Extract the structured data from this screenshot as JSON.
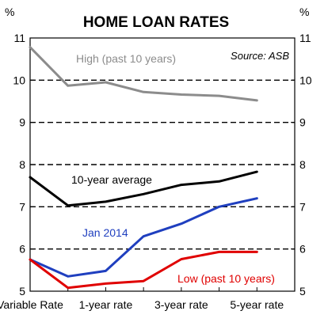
{
  "chart_data": {
    "type": "line",
    "title": "HOME LOAN RATES",
    "y_unit_left": "%",
    "y_unit_right": "%",
    "source": "Source: ASB",
    "ylim": [
      5,
      11
    ],
    "yticks": [
      "5",
      "6",
      "7",
      "8",
      "9",
      "10",
      "11"
    ],
    "grid": "dashed horizontal",
    "x": [
      0,
      1,
      2,
      3,
      4,
      5,
      6,
      7
    ],
    "xtick_labels": [
      "Variable Rate",
      "1-year rate",
      "3-year rate",
      "5-year rate"
    ],
    "xtick_positions": [
      0,
      2,
      4,
      6
    ],
    "series": [
      {
        "name": "High (past 10 years)",
        "color": "#8c8c8c",
        "values": [
          10.78,
          9.87,
          9.95,
          9.72,
          9.66,
          9.63,
          9.52,
          null
        ]
      },
      {
        "name": "10-year average",
        "color": "#000000",
        "values": [
          7.7,
          7.03,
          7.12,
          7.3,
          7.52,
          7.6,
          7.83,
          null
        ]
      },
      {
        "name": "Jan 2014",
        "color": "#1f3fbf",
        "values": [
          5.75,
          5.35,
          5.48,
          6.3,
          6.6,
          7.0,
          7.2,
          null
        ]
      },
      {
        "name": "Low (past 10 years)",
        "color": "#e00000",
        "values": [
          5.75,
          5.08,
          5.18,
          5.24,
          5.76,
          5.93,
          5.93,
          null
        ]
      }
    ]
  }
}
